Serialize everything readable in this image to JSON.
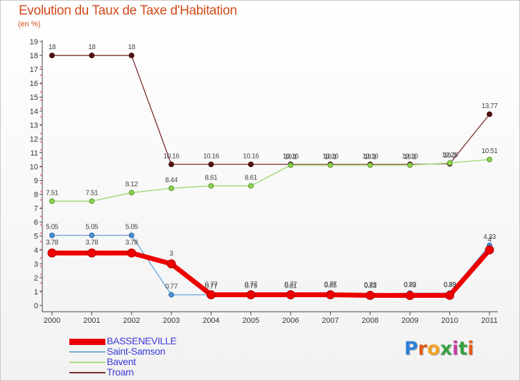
{
  "header": {
    "title": "Evolution du Taux de Taxe d'Habitation",
    "subtitle": "(en %)"
  },
  "logo": {
    "text": "Proxiti",
    "letter_colors": [
      "#2f7fd8",
      "#e05a1a",
      "#f0a020",
      "#3aa040",
      "#c040a0",
      "#3aa040",
      "#e05a1a"
    ]
  },
  "chart_data": {
    "type": "line",
    "title": "Evolution du Taux de Taxe d'Habitation",
    "ylabel": "(en %)",
    "xlabel": "",
    "x": [
      "2000",
      "2001",
      "2002",
      "2003",
      "2004",
      "2005",
      "2006",
      "2007",
      "2008",
      "2009",
      "2010",
      "2011"
    ],
    "ylim": [
      0,
      19
    ],
    "yticks": [
      0,
      1,
      2,
      3,
      4,
      5,
      6,
      7,
      8,
      9,
      10,
      11,
      12,
      13,
      14,
      15,
      16,
      17,
      18,
      19
    ],
    "grid": false,
    "legend_position": "bottom-left",
    "series": [
      {
        "name": "BASSENEVILLE",
        "color": "#ee0000",
        "values": [
          3.78,
          3.78,
          3.78,
          3,
          0.77,
          0.77,
          0.77,
          0.77,
          0.73,
          0.72,
          0.73,
          4.0
        ],
        "labels": [
          "3.78",
          "3.78",
          "3.78",
          "3",
          "0.77",
          "0.77",
          "0.77",
          "0.77",
          "0.73",
          "0.72",
          "0.73",
          "4"
        ]
      },
      {
        "name": "Saint-Samson",
        "color": "#5b9bd5",
        "values": [
          5.05,
          5.05,
          5.05,
          0.77,
          0.77,
          0.79,
          0.81,
          0.85,
          0.83,
          0.89,
          0.89,
          4.33
        ],
        "labels": [
          "5.05",
          "5.05",
          "5.05",
          "0.77",
          "0.77",
          "0.79",
          "0.81",
          "0.85",
          "0.83",
          "0.89",
          "0.89",
          "4.33"
        ]
      },
      {
        "name": "Bavent",
        "color": "#90d060",
        "values": [
          7.51,
          7.51,
          8.12,
          8.44,
          8.61,
          8.61,
          10.1,
          10.1,
          10.1,
          10.1,
          10.26,
          10.51
        ],
        "labels": [
          "7.51",
          "7.51",
          "8.12",
          "8.44",
          "8.61",
          "8.61",
          "10.1",
          "10.1",
          "10.1",
          "10.1",
          "10.26",
          "10.51"
        ]
      },
      {
        "name": "Troarn",
        "color": "#7a2020",
        "values": [
          18,
          18,
          18,
          10.16,
          10.16,
          10.16,
          10.16,
          10.16,
          10.16,
          10.16,
          10.2,
          13.77
        ],
        "labels": [
          "18",
          "18",
          "18",
          "10.16",
          "10.16",
          "10.16",
          "10.16",
          "10.16",
          "10.16",
          "10.16",
          "10.2",
          "13.77"
        ]
      }
    ]
  }
}
